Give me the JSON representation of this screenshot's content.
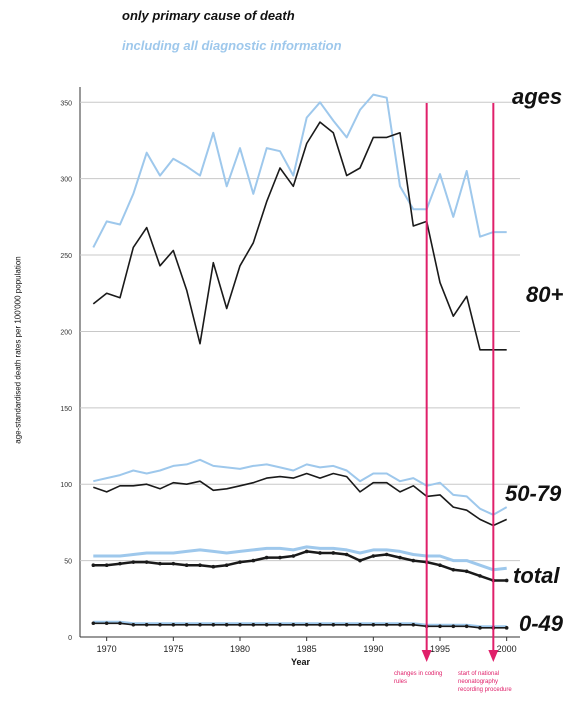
{
  "legend": {
    "primary": "only primary cause of death",
    "diagnostic": "including all diagnostic information"
  },
  "groups": {
    "header": "ages",
    "g80": "80+",
    "g50": "50-79",
    "total": "total",
    "g0": "0-49"
  },
  "annotations": [
    {
      "year": 1994,
      "text": "changes in coding rules"
    },
    {
      "year": 1999,
      "text": "start of national neonatography recording procedure"
    }
  ],
  "colors": {
    "primary": "#1a1a1a",
    "diagnostic": "#9ec8ec",
    "marker": "#e0206a",
    "grid": "#c8c8c8"
  },
  "chart_data": {
    "type": "line",
    "xlabel": "Year",
    "ylabel": "age-standardised death rates per 100'000 population",
    "xlim": [
      1968,
      2001
    ],
    "ylim": [
      0,
      360
    ],
    "xticks": [
      1970,
      1975,
      1980,
      1985,
      1990,
      1995,
      2000
    ],
    "yticks": [
      0,
      50,
      100,
      150,
      200,
      250,
      300,
      350
    ],
    "x": [
      1969,
      1970,
      1971,
      1972,
      1973,
      1974,
      1975,
      1976,
      1977,
      1978,
      1979,
      1980,
      1981,
      1982,
      1983,
      1984,
      1985,
      1986,
      1987,
      1988,
      1989,
      1990,
      1991,
      1992,
      1993,
      1994,
      1995,
      1996,
      1997,
      1998,
      1999,
      2000
    ],
    "series": [
      {
        "group": "80+",
        "kind": "primary",
        "values": [
          218,
          225,
          222,
          255,
          268,
          243,
          253,
          227,
          192,
          245,
          215,
          243,
          258,
          285,
          307,
          295,
          323,
          337,
          330,
          302,
          307,
          327,
          327,
          330,
          269,
          272,
          232,
          210,
          223,
          188,
          188,
          188
        ]
      },
      {
        "group": "80+",
        "kind": "diagnostic",
        "values": [
          255,
          272,
          270,
          290,
          317,
          302,
          313,
          308,
          302,
          330,
          295,
          320,
          290,
          320,
          318,
          302,
          340,
          350,
          338,
          327,
          345,
          355,
          353,
          295,
          280,
          280,
          303,
          275,
          305,
          262,
          265,
          265
        ]
      },
      {
        "group": "50-79",
        "kind": "primary",
        "values": [
          98,
          95,
          99,
          99,
          100,
          97,
          101,
          100,
          102,
          96,
          97,
          99,
          101,
          104,
          105,
          104,
          107,
          104,
          107,
          105,
          95,
          101,
          101,
          95,
          99,
          92,
          93,
          85,
          83,
          77,
          73,
          77
        ]
      },
      {
        "group": "50-79",
        "kind": "diagnostic",
        "values": [
          102,
          104,
          106,
          109,
          107,
          109,
          112,
          113,
          116,
          112,
          111,
          110,
          112,
          113,
          111,
          109,
          113,
          111,
          112,
          109,
          102,
          107,
          107,
          102,
          104,
          99,
          101,
          93,
          92,
          84,
          80,
          85
        ]
      },
      {
        "group": "total",
        "kind": "primary",
        "values": [
          47,
          47,
          48,
          49,
          49,
          48,
          48,
          47,
          47,
          46,
          47,
          49,
          50,
          52,
          52,
          53,
          56,
          55,
          55,
          54,
          50,
          53,
          54,
          52,
          50,
          49,
          47,
          44,
          43,
          40,
          37,
          37
        ]
      },
      {
        "group": "total",
        "kind": "diagnostic",
        "values": [
          53,
          53,
          53,
          54,
          55,
          55,
          55,
          56,
          57,
          56,
          55,
          56,
          57,
          58,
          58,
          57,
          59,
          58,
          58,
          57,
          55,
          57,
          57,
          56,
          54,
          53,
          53,
          50,
          50,
          47,
          44,
          45
        ]
      },
      {
        "group": "0-49",
        "kind": "primary",
        "values": [
          9,
          9,
          9,
          8,
          8,
          8,
          8,
          8,
          8,
          8,
          8,
          8,
          8,
          8,
          8,
          8,
          8,
          8,
          8,
          8,
          8,
          8,
          8,
          8,
          8,
          7,
          7,
          7,
          7,
          6,
          6,
          6
        ]
      },
      {
        "group": "0-49",
        "kind": "diagnostic",
        "values": [
          10,
          10,
          10,
          9,
          9,
          9,
          9,
          9,
          9,
          9,
          9,
          9,
          9,
          9,
          9,
          9,
          9,
          9,
          9,
          9,
          9,
          9,
          9,
          9,
          9,
          8,
          8,
          8,
          8,
          7,
          7,
          7
        ]
      }
    ]
  }
}
